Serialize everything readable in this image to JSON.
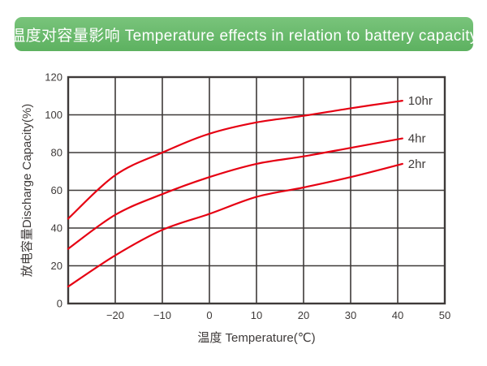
{
  "header": {
    "title": "温度对容量影响 Temperature effects in relation to battery capacity",
    "background_top": "#79c47b",
    "background_bottom": "#5db160",
    "text_color": "#ffffff"
  },
  "chart_data": {
    "type": "line",
    "title": "温度对容量影响 Temperature effects in relation to battery capacity",
    "xlabel": "温度 Temperature(℃)",
    "ylabel": "放电容量Discharge Capacity(%)",
    "xlim": [
      -30,
      50
    ],
    "ylim": [
      0,
      120
    ],
    "xticks": [
      -20,
      -10,
      0,
      10,
      20,
      30,
      40,
      50
    ],
    "yticks": [
      0,
      20,
      40,
      60,
      80,
      100,
      120
    ],
    "grid": true,
    "legend_position": "curve-end-labels-right",
    "line_color": "#e60012",
    "axis_color": "#3e3a39",
    "tick_label_color": "#3e3a39",
    "series": [
      {
        "name": "10hr",
        "points": [
          [
            -30,
            45
          ],
          [
            -20,
            68
          ],
          [
            -10,
            80
          ],
          [
            0,
            90
          ],
          [
            10,
            96
          ],
          [
            20,
            99.5
          ],
          [
            30,
            103.5
          ],
          [
            41,
            107.5
          ]
        ]
      },
      {
        "name": "4hr",
        "points": [
          [
            -30,
            29
          ],
          [
            -20,
            47
          ],
          [
            -10,
            58
          ],
          [
            0,
            67
          ],
          [
            10,
            74
          ],
          [
            20,
            78
          ],
          [
            30,
            82.5
          ],
          [
            41,
            87.5
          ]
        ]
      },
      {
        "name": "2hr",
        "points": [
          [
            -30,
            9
          ],
          [
            -20,
            25.5
          ],
          [
            -10,
            39
          ],
          [
            0,
            47.5
          ],
          [
            10,
            56.5
          ],
          [
            20,
            61.5
          ],
          [
            30,
            67
          ],
          [
            41,
            74
          ]
        ]
      }
    ]
  }
}
